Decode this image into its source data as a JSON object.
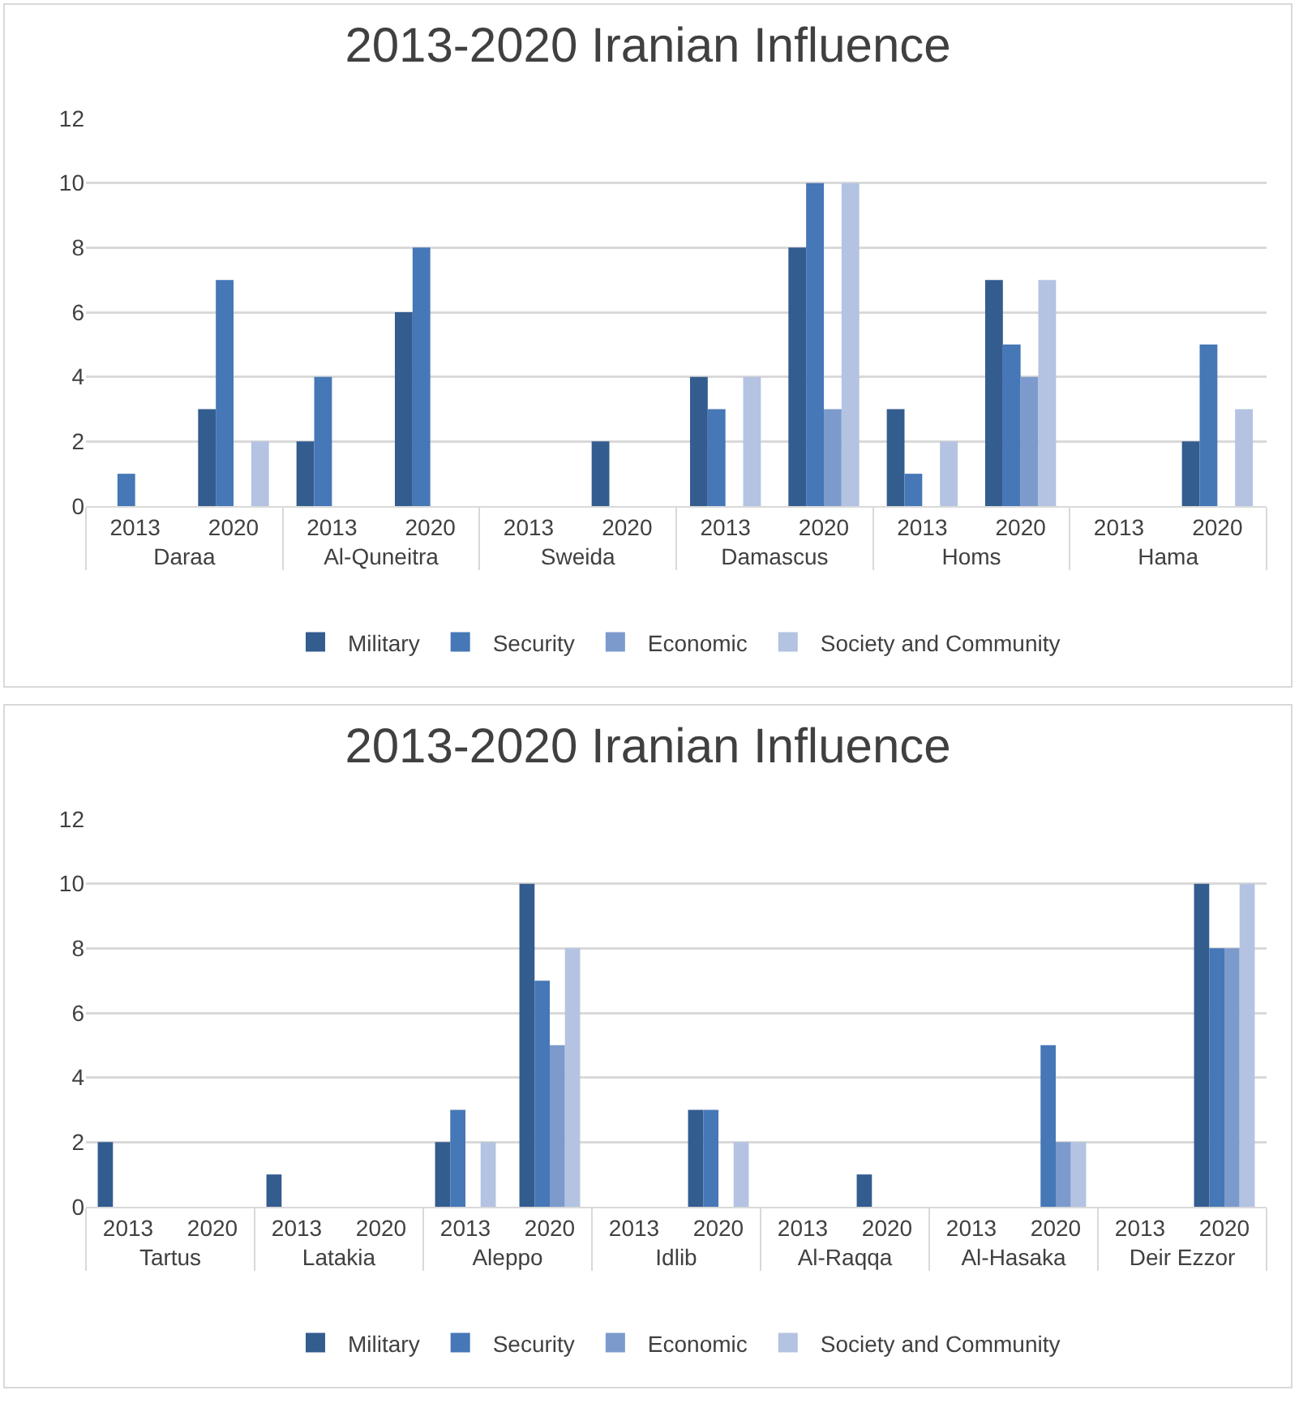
{
  "chart_data": [
    {
      "type": "bar",
      "title": "2013-2020 Iranian Influence",
      "categories": [
        "2013",
        "2020",
        "2013",
        "2020",
        "2013",
        "2020",
        "2013",
        "2020",
        "2013",
        "2020",
        "2013",
        "2020"
      ],
      "annotations": [
        "Daraa",
        "Al-Quneitra",
        "Sweida",
        "Damascus",
        "Homs",
        "Hama"
      ],
      "series": [
        {
          "name": "Military",
          "color": "#335c8f",
          "values": [
            null,
            3,
            2,
            6,
            null,
            2,
            4,
            8,
            3,
            7,
            null,
            2
          ]
        },
        {
          "name": "Security",
          "color": "#4677b6",
          "values": [
            1,
            7,
            4,
            8,
            null,
            null,
            3,
            10,
            1,
            5,
            null,
            5
          ]
        },
        {
          "name": "Economic",
          "color": "#7c9bcc",
          "values": [
            null,
            null,
            null,
            null,
            null,
            null,
            null,
            3,
            null,
            4,
            null,
            null
          ]
        },
        {
          "name": "Society and Community",
          "color": "#b3c3e1",
          "values": [
            null,
            2,
            null,
            null,
            null,
            null,
            4,
            10,
            2,
            7,
            null,
            3
          ]
        }
      ],
      "ylim": [
        0,
        12
      ],
      "yticks": [
        0,
        2,
        4,
        6,
        8,
        10,
        12
      ],
      "grid": "y",
      "legend": "bottom"
    },
    {
      "type": "bar",
      "title": "2013-2020 Iranian Influence",
      "categories": [
        "2013",
        "2020",
        "2013",
        "2020",
        "2013",
        "2020",
        "2013",
        "2020",
        "2013",
        "2020",
        "2013",
        "2020",
        "2013",
        "2020"
      ],
      "annotations": [
        "Tartus",
        "Latakia",
        "Aleppo",
        "Idlib",
        "Al-Raqqa",
        "Al-Hasaka",
        "Deir Ezzor"
      ],
      "series": [
        {
          "name": "Military",
          "color": "#335c8f",
          "values": [
            2,
            null,
            1,
            null,
            2,
            10,
            null,
            3,
            null,
            1,
            null,
            null,
            null,
            10
          ]
        },
        {
          "name": "Security",
          "color": "#4677b6",
          "values": [
            null,
            null,
            null,
            null,
            3,
            7,
            null,
            3,
            null,
            null,
            null,
            5,
            null,
            8
          ]
        },
        {
          "name": "Economic",
          "color": "#7c9bcc",
          "values": [
            null,
            null,
            null,
            null,
            null,
            5,
            null,
            null,
            null,
            null,
            null,
            2,
            null,
            8
          ]
        },
        {
          "name": "Society and Community",
          "color": "#b3c3e1",
          "values": [
            null,
            null,
            null,
            null,
            2,
            8,
            null,
            2,
            null,
            null,
            null,
            2,
            null,
            10
          ]
        }
      ],
      "ylim": [
        0,
        12
      ],
      "yticks": [
        0,
        2,
        4,
        6,
        8,
        10,
        12
      ],
      "grid": "y",
      "legend": "bottom"
    }
  ]
}
